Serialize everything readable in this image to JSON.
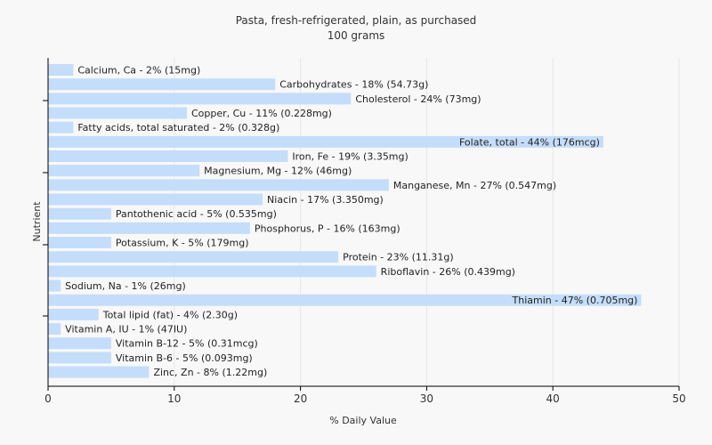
{
  "chart_data": {
    "type": "bar",
    "orientation": "horizontal",
    "title": "Pasta, fresh-refrigerated, plain, as purchased",
    "subtitle": "100 grams",
    "xlabel": "% Daily Value",
    "ylabel": "Nutrient",
    "xlim": [
      0,
      50
    ],
    "xticks": [
      0,
      10,
      20,
      30,
      40,
      50
    ],
    "grid": true,
    "bar_color": "#c4ddfa",
    "categories": [
      "Calcium, Ca - 2% (15mg)",
      "Carbohydrates - 18% (54.73g)",
      "Cholesterol - 24% (73mg)",
      "Copper, Cu - 11% (0.228mg)",
      "Fatty acids, total saturated - 2% (0.328g)",
      "Folate, total - 44% (176mcg)",
      "Iron, Fe - 19% (3.35mg)",
      "Magnesium, Mg - 12% (46mg)",
      "Manganese, Mn - 27% (0.547mg)",
      "Niacin - 17% (3.350mg)",
      "Pantothenic acid - 5% (0.535mg)",
      "Phosphorus, P - 16% (163mg)",
      "Potassium, K - 5% (179mg)",
      "Protein - 23% (11.31g)",
      "Riboflavin - 26% (0.439mg)",
      "Sodium, Na - 1% (26mg)",
      "Thiamin - 47% (0.705mg)",
      "Total lipid (fat) - 4% (2.30g)",
      "Vitamin A, IU - 1% (47IU)",
      "Vitamin B-12 - 5% (0.31mcg)",
      "Vitamin B-6 - 5% (0.093mg)",
      "Zinc, Zn - 8% (1.22mg)"
    ],
    "values": [
      2,
      18,
      24,
      11,
      2,
      44,
      19,
      12,
      27,
      17,
      5,
      16,
      5,
      23,
      26,
      1,
      47,
      4,
      1,
      5,
      5,
      8
    ]
  }
}
